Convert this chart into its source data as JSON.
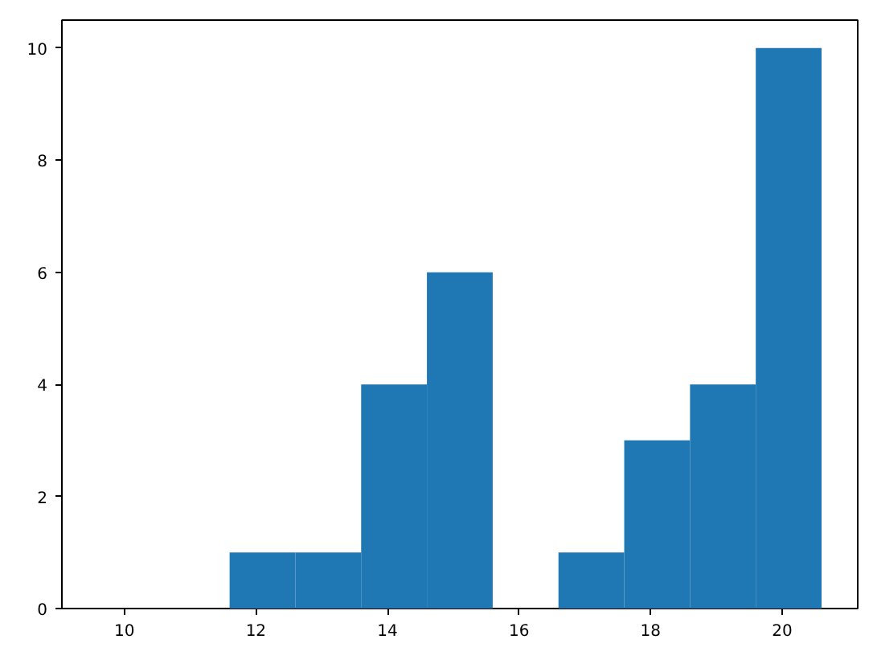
{
  "chart_data": {
    "type": "histogram",
    "bins": [
      9.6,
      10.6,
      11.6,
      12.6,
      13.6,
      14.6,
      15.6,
      16.6,
      17.6,
      18.6,
      19.6,
      20.6
    ],
    "values": [
      0,
      0,
      1,
      1,
      4,
      6,
      0,
      1,
      3,
      4,
      10
    ],
    "color": "#1f77b4",
    "xlim": [
      9.05,
      21.15
    ],
    "ylim": [
      0,
      10.5
    ],
    "xticks": [
      10,
      12,
      14,
      16,
      18,
      20
    ],
    "yticks": [
      0,
      2,
      4,
      6,
      8,
      10
    ],
    "grid": false
  }
}
